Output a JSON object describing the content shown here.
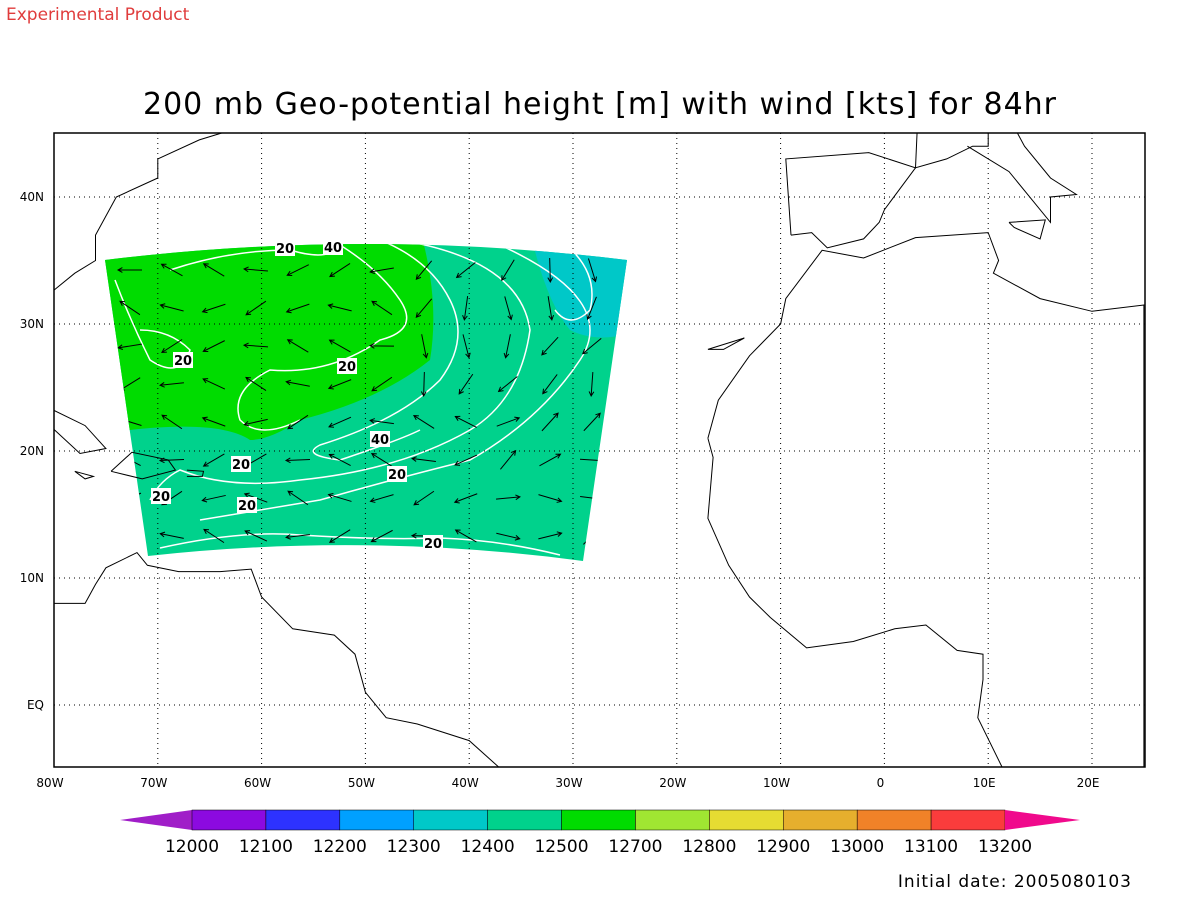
{
  "header": "Experimental Product",
  "title": "200 mb Geo-potential height [m] with wind [kts] for 84hr",
  "lon_labels": [
    "80W",
    "70W",
    "60W",
    "50W",
    "40W",
    "30W",
    "20W",
    "10W",
    "0",
    "10E",
    "20E"
  ],
  "lat_labels": [
    "40N",
    "30N",
    "20N",
    "10N",
    "EQ"
  ],
  "contour_labels": [
    "20",
    "40",
    "20",
    "20",
    "40",
    "20",
    "20",
    "20",
    "20",
    "20"
  ],
  "colorbar": {
    "labels": [
      "12000",
      "12100",
      "12200",
      "12300",
      "12400",
      "12500",
      "12700",
      "12800",
      "12900",
      "13000",
      "13100",
      "13200"
    ],
    "colors": [
      "#a01ec8",
      "#8c0ae0",
      "#2d32ff",
      "#00a0ff",
      "#00c8c8",
      "#00d28c",
      "#00dc00",
      "#a0e632",
      "#e6dc32",
      "#e6af2d",
      "#f08228",
      "#fa3c3c",
      "#f00a8c"
    ]
  },
  "footer": "Initial date: 2005080103"
}
